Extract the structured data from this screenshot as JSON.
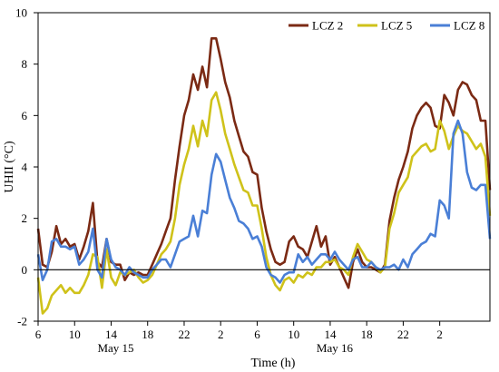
{
  "chart_data": {
    "type": "line",
    "xlabel": "Time (h)",
    "ylabel": "UHII (°C)",
    "ylim": [
      -2,
      10
    ],
    "y_ticks": [
      -2,
      0,
      2,
      4,
      6,
      8,
      10
    ],
    "x_range": [
      0,
      48
    ],
    "x_tick_labels": [
      "6",
      "10",
      "14",
      "18",
      "22",
      "2",
      "6",
      "10",
      "14",
      "18",
      "22",
      "2"
    ],
    "x_ticks": [
      0,
      4,
      8,
      12,
      16,
      20,
      24,
      28,
      32,
      36,
      40,
      44
    ],
    "day_labels": [
      {
        "label": "May 15",
        "x": 8.5
      },
      {
        "label": "May 16",
        "x": 32.5
      }
    ],
    "zero_line": true,
    "grid": false,
    "legend_position": "top-right",
    "series": [
      {
        "name": "LCZ 2",
        "color": "#7b2a14",
        "values": [
          [
            0,
            1.6
          ],
          [
            0.5,
            0.2
          ],
          [
            1,
            0.1
          ],
          [
            1.5,
            0.7
          ],
          [
            2,
            1.7
          ],
          [
            2.5,
            1.0
          ],
          [
            3,
            1.2
          ],
          [
            3.5,
            0.9
          ],
          [
            4,
            1.0
          ],
          [
            4.5,
            0.4
          ],
          [
            5,
            0.9
          ],
          [
            5.5,
            1.5
          ],
          [
            6,
            2.6
          ],
          [
            6.5,
            0.3
          ],
          [
            7,
            0.1
          ],
          [
            7.5,
            1.2
          ],
          [
            8,
            0.3
          ],
          [
            8.5,
            0.2
          ],
          [
            9,
            0.2
          ],
          [
            9.5,
            -0.4
          ],
          [
            10,
            -0.1
          ],
          [
            10.5,
            -0.2
          ],
          [
            11,
            -0.1
          ],
          [
            11.5,
            -0.2
          ],
          [
            12,
            -0.2
          ],
          [
            12.5,
            0.2
          ],
          [
            13,
            0.6
          ],
          [
            13.5,
            1.0
          ],
          [
            14,
            1.5
          ],
          [
            14.5,
            2.0
          ],
          [
            15,
            3.5
          ],
          [
            15.5,
            4.8
          ],
          [
            16,
            6.0
          ],
          [
            16.5,
            6.6
          ],
          [
            17,
            7.6
          ],
          [
            17.5,
            7.0
          ],
          [
            18,
            7.9
          ],
          [
            18.5,
            7.1
          ],
          [
            19,
            9.0
          ],
          [
            19.5,
            9.0
          ],
          [
            20,
            8.2
          ],
          [
            20.5,
            7.3
          ],
          [
            21,
            6.7
          ],
          [
            21.5,
            5.8
          ],
          [
            22,
            5.2
          ],
          [
            22.5,
            4.6
          ],
          [
            23,
            4.4
          ],
          [
            23.5,
            3.8
          ],
          [
            24,
            3.7
          ],
          [
            24.5,
            2.4
          ],
          [
            25,
            1.5
          ],
          [
            25.5,
            0.8
          ],
          [
            26,
            0.3
          ],
          [
            26.5,
            0.2
          ],
          [
            27,
            0.3
          ],
          [
            27.5,
            1.1
          ],
          [
            28,
            1.3
          ],
          [
            28.5,
            0.9
          ],
          [
            29,
            0.8
          ],
          [
            29.5,
            0.5
          ],
          [
            30,
            1.1
          ],
          [
            30.5,
            1.7
          ],
          [
            31,
            0.9
          ],
          [
            31.5,
            1.3
          ],
          [
            32,
            0.2
          ],
          [
            32.5,
            0.5
          ],
          [
            33,
            0.1
          ],
          [
            33.5,
            -0.3
          ],
          [
            34,
            -0.7
          ],
          [
            34.5,
            0.3
          ],
          [
            35,
            0.8
          ],
          [
            35.5,
            0.3
          ],
          [
            36,
            0.1
          ],
          [
            36.5,
            0.1
          ],
          [
            37,
            0.0
          ],
          [
            37.5,
            -0.1
          ],
          [
            38,
            0.2
          ],
          [
            38.5,
            1.9
          ],
          [
            39,
            2.8
          ],
          [
            39.5,
            3.5
          ],
          [
            40,
            4.0
          ],
          [
            40.5,
            4.6
          ],
          [
            41,
            5.5
          ],
          [
            41.5,
            6.0
          ],
          [
            42,
            6.3
          ],
          [
            42.5,
            6.5
          ],
          [
            43,
            6.3
          ],
          [
            43.5,
            5.6
          ],
          [
            44,
            5.5
          ],
          [
            44.5,
            6.8
          ],
          [
            45,
            6.5
          ],
          [
            45.5,
            6.0
          ],
          [
            46,
            7.0
          ],
          [
            46.5,
            7.3
          ],
          [
            47,
            7.2
          ],
          [
            47.5,
            6.8
          ],
          [
            48,
            6.6
          ],
          [
            48.5,
            5.8
          ],
          [
            49,
            5.8
          ],
          [
            49.5,
            3.1
          ]
        ]
      },
      {
        "name": "LCZ 5",
        "color": "#cfc21a",
        "values": [
          [
            0,
            -0.3
          ],
          [
            0.5,
            -1.7
          ],
          [
            1,
            -1.5
          ],
          [
            1.5,
            -1.0
          ],
          [
            2,
            -0.8
          ],
          [
            2.5,
            -0.6
          ],
          [
            3,
            -0.9
          ],
          [
            3.5,
            -0.7
          ],
          [
            4,
            -0.9
          ],
          [
            4.5,
            -0.9
          ],
          [
            5,
            -0.6
          ],
          [
            5.5,
            -0.2
          ],
          [
            6,
            0.6
          ],
          [
            6.5,
            0.5
          ],
          [
            7,
            -0.7
          ],
          [
            7.5,
            0.8
          ],
          [
            8,
            -0.3
          ],
          [
            8.5,
            -0.6
          ],
          [
            9,
            -0.1
          ],
          [
            9.5,
            -0.2
          ],
          [
            10,
            -0.1
          ],
          [
            10.5,
            0.0
          ],
          [
            11,
            -0.3
          ],
          [
            11.5,
            -0.5
          ],
          [
            12,
            -0.4
          ],
          [
            12.5,
            -0.2
          ],
          [
            13,
            0.2
          ],
          [
            13.5,
            0.6
          ],
          [
            14,
            0.8
          ],
          [
            14.5,
            1.1
          ],
          [
            15,
            2.0
          ],
          [
            15.5,
            3.3
          ],
          [
            16,
            4.1
          ],
          [
            16.5,
            4.7
          ],
          [
            17,
            5.6
          ],
          [
            17.5,
            4.8
          ],
          [
            18,
            5.8
          ],
          [
            18.5,
            5.2
          ],
          [
            19,
            6.6
          ],
          [
            19.5,
            6.9
          ],
          [
            20,
            6.2
          ],
          [
            20.5,
            5.3
          ],
          [
            21,
            4.7
          ],
          [
            21.5,
            4.1
          ],
          [
            22,
            3.6
          ],
          [
            22.5,
            3.1
          ],
          [
            23,
            3.0
          ],
          [
            23.5,
            2.5
          ],
          [
            24,
            2.5
          ],
          [
            24.5,
            1.6
          ],
          [
            25,
            0.5
          ],
          [
            25.5,
            -0.2
          ],
          [
            26,
            -0.6
          ],
          [
            26.5,
            -0.8
          ],
          [
            27,
            -0.4
          ],
          [
            27.5,
            -0.3
          ],
          [
            28,
            -0.5
          ],
          [
            28.5,
            -0.2
          ],
          [
            29,
            -0.3
          ],
          [
            29.5,
            -0.1
          ],
          [
            30,
            -0.2
          ],
          [
            30.5,
            0.1
          ],
          [
            31,
            0.1
          ],
          [
            31.5,
            0.3
          ],
          [
            32,
            0.3
          ],
          [
            32.5,
            0.4
          ],
          [
            33,
            0.1
          ],
          [
            33.5,
            0.0
          ],
          [
            34,
            -0.2
          ],
          [
            34.5,
            0.5
          ],
          [
            35,
            1.0
          ],
          [
            35.5,
            0.7
          ],
          [
            36,
            0.4
          ],
          [
            36.5,
            0.3
          ],
          [
            37,
            0.1
          ],
          [
            37.5,
            -0.1
          ],
          [
            38,
            0.1
          ],
          [
            38.5,
            1.6
          ],
          [
            39,
            2.2
          ],
          [
            39.5,
            3.0
          ],
          [
            40,
            3.3
          ],
          [
            40.5,
            3.6
          ],
          [
            41,
            4.4
          ],
          [
            41.5,
            4.6
          ],
          [
            42,
            4.8
          ],
          [
            42.5,
            4.9
          ],
          [
            43,
            4.6
          ],
          [
            43.5,
            4.7
          ],
          [
            44,
            5.8
          ],
          [
            44.5,
            5.4
          ],
          [
            45,
            4.7
          ],
          [
            45.5,
            5.2
          ],
          [
            46,
            5.6
          ],
          [
            46.5,
            5.4
          ],
          [
            47,
            5.3
          ],
          [
            47.5,
            5.0
          ],
          [
            48,
            4.7
          ],
          [
            48.5,
            4.9
          ],
          [
            49,
            4.4
          ],
          [
            49.5,
            2.1
          ]
        ]
      },
      {
        "name": "LCZ 8",
        "color": "#4a7fd6",
        "values": [
          [
            0,
            0.6
          ],
          [
            0.5,
            -0.4
          ],
          [
            1,
            0.0
          ],
          [
            1.5,
            1.1
          ],
          [
            2,
            1.2
          ],
          [
            2.5,
            0.9
          ],
          [
            3,
            0.9
          ],
          [
            3.5,
            0.8
          ],
          [
            4,
            0.9
          ],
          [
            4.5,
            0.2
          ],
          [
            5,
            0.4
          ],
          [
            5.5,
            0.7
          ],
          [
            6,
            1.6
          ],
          [
            6.5,
            0.0
          ],
          [
            7,
            -0.3
          ],
          [
            7.5,
            1.2
          ],
          [
            8,
            0.4
          ],
          [
            8.5,
            0.1
          ],
          [
            9,
            0.0
          ],
          [
            9.5,
            -0.2
          ],
          [
            10,
            0.1
          ],
          [
            10.5,
            -0.1
          ],
          [
            11,
            -0.2
          ],
          [
            11.5,
            -0.3
          ],
          [
            12,
            -0.3
          ],
          [
            12.5,
            0.0
          ],
          [
            13,
            0.2
          ],
          [
            13.5,
            0.4
          ],
          [
            14,
            0.4
          ],
          [
            14.5,
            0.1
          ],
          [
            15,
            0.6
          ],
          [
            15.5,
            1.1
          ],
          [
            16,
            1.2
          ],
          [
            16.5,
            1.3
          ],
          [
            17,
            2.1
          ],
          [
            17.5,
            1.3
          ],
          [
            18,
            2.3
          ],
          [
            18.5,
            2.2
          ],
          [
            19,
            3.7
          ],
          [
            19.5,
            4.5
          ],
          [
            20,
            4.2
          ],
          [
            20.5,
            3.5
          ],
          [
            21,
            2.8
          ],
          [
            21.5,
            2.4
          ],
          [
            22,
            1.9
          ],
          [
            22.5,
            1.8
          ],
          [
            23,
            1.6
          ],
          [
            23.5,
            1.2
          ],
          [
            24,
            1.3
          ],
          [
            24.5,
            0.9
          ],
          [
            25,
            0.1
          ],
          [
            25.5,
            -0.2
          ],
          [
            26,
            -0.3
          ],
          [
            26.5,
            -0.5
          ],
          [
            27,
            -0.2
          ],
          [
            27.5,
            -0.1
          ],
          [
            28,
            -0.1
          ],
          [
            28.5,
            0.6
          ],
          [
            29,
            0.3
          ],
          [
            29.5,
            0.5
          ],
          [
            30,
            0.2
          ],
          [
            30.5,
            0.4
          ],
          [
            31,
            0.6
          ],
          [
            31.5,
            0.6
          ],
          [
            32,
            0.4
          ],
          [
            32.5,
            0.7
          ],
          [
            33,
            0.4
          ],
          [
            33.5,
            0.2
          ],
          [
            34,
            0.0
          ],
          [
            34.5,
            0.4
          ],
          [
            35,
            0.5
          ],
          [
            35.5,
            0.1
          ],
          [
            36,
            0.1
          ],
          [
            36.5,
            0.3
          ],
          [
            37,
            0.1
          ],
          [
            37.5,
            0.0
          ],
          [
            38,
            0.1
          ],
          [
            38.5,
            0.1
          ],
          [
            39,
            0.2
          ],
          [
            39.5,
            0.0
          ],
          [
            40,
            0.4
          ],
          [
            40.5,
            0.1
          ],
          [
            41,
            0.6
          ],
          [
            41.5,
            0.8
          ],
          [
            42,
            1.0
          ],
          [
            42.5,
            1.1
          ],
          [
            43,
            1.4
          ],
          [
            43.5,
            1.3
          ],
          [
            44,
            2.7
          ],
          [
            44.5,
            2.5
          ],
          [
            45,
            2.0
          ],
          [
            45.5,
            5.3
          ],
          [
            46,
            5.8
          ],
          [
            46.5,
            5.3
          ],
          [
            47,
            3.8
          ],
          [
            47.5,
            3.2
          ],
          [
            48,
            3.1
          ],
          [
            48.5,
            3.3
          ],
          [
            49,
            3.3
          ],
          [
            49.5,
            1.2
          ]
        ]
      }
    ]
  }
}
